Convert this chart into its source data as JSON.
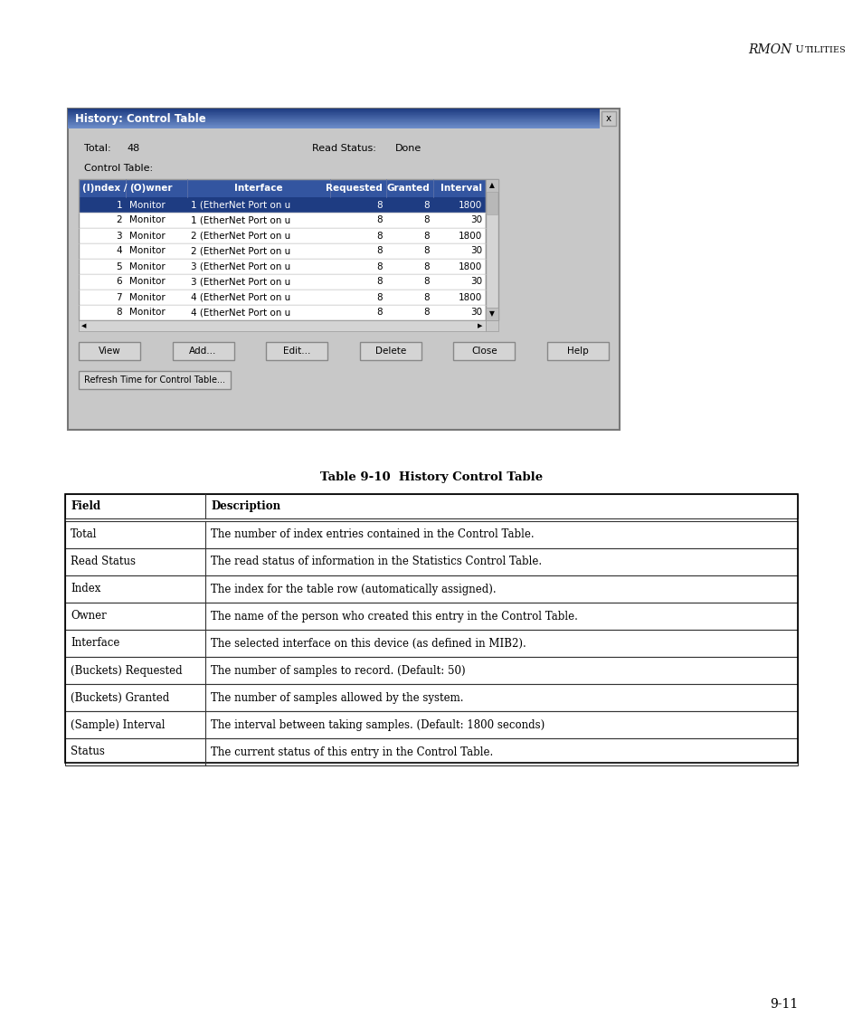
{
  "page_header_italic": "RMON",
  "page_header_small": " UTILITIES",
  "page_number": "9-11",
  "dialog_title": "History: Control Table",
  "dialog_total_label": "Total:",
  "dialog_total_value": "48",
  "dialog_read_status_label": "Read Status:",
  "dialog_read_status_value": "Done",
  "dialog_control_table_label": "Control Table:",
  "dialog_columns": [
    "(I)ndex /",
    "(O)wner",
    "Interface",
    "Requested",
    "Granted",
    "Interval"
  ],
  "dialog_rows": [
    [
      "1",
      "Monitor",
      "1 (EtherNet Port on u",
      "8",
      "8",
      "1800"
    ],
    [
      "2",
      "Monitor",
      "1 (EtherNet Port on u",
      "8",
      "8",
      "30"
    ],
    [
      "3",
      "Monitor",
      "2 (EtherNet Port on u",
      "8",
      "8",
      "1800"
    ],
    [
      "4",
      "Monitor",
      "2 (EtherNet Port on u",
      "8",
      "8",
      "30"
    ],
    [
      "5",
      "Monitor",
      "3 (EtherNet Port on u",
      "8",
      "8",
      "1800"
    ],
    [
      "6",
      "Monitor",
      "3 (EtherNet Port on u",
      "8",
      "8",
      "30"
    ],
    [
      "7",
      "Monitor",
      "4 (EtherNet Port on u",
      "8",
      "8",
      "1800"
    ],
    [
      "8",
      "Monitor",
      "4 (EtherNet Port on u",
      "8",
      "8",
      "30"
    ]
  ],
  "dialog_buttons": [
    "View",
    "Add...",
    "Edit...",
    "Delete",
    "Close",
    "Help"
  ],
  "dialog_refresh_button": "Refresh Time for Control Table...",
  "dialog_bg": "#c8c8c8",
  "dialog_titlebar_dark": "#1e3c82",
  "dialog_titlebar_light": "#7090cc",
  "dialog_selected_row_color": "#1e3c82",
  "dialog_selected_owner_color": "#3366bb",
  "dialog_header_bg": "#3355a0",
  "table_caption": "Table 9-10  History Control Table",
  "table_headers": [
    "Field",
    "Description"
  ],
  "table_rows": [
    [
      "Total",
      "The number of index entries contained in the Control Table."
    ],
    [
      "Read Status",
      "The read status of information in the Statistics Control Table."
    ],
    [
      "Index",
      "The index for the table row (automatically assigned)."
    ],
    [
      "Owner",
      "The name of the person who created this entry in the Control Table."
    ],
    [
      "Interface",
      "The selected interface on this device (as defined in MIB2)."
    ],
    [
      "(Buckets) Requested",
      "The number of samples to record. (Default: 50)"
    ],
    [
      "(Buckets) Granted",
      "The number of samples allowed by the system."
    ],
    [
      "(Sample) Interval",
      "The interval between taking samples. (Default: 1800 seconds)"
    ],
    [
      "Status",
      "The current status of this entry in the Control Table."
    ]
  ],
  "bg_color": "#ffffff"
}
